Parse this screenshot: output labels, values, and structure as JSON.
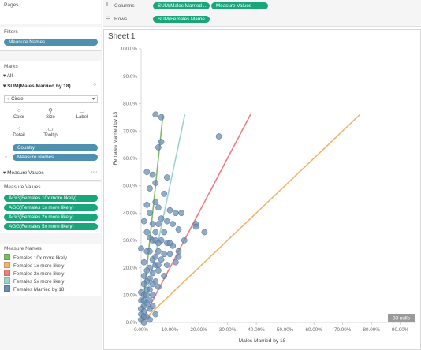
{
  "sidebar": {
    "pages_title": "Pages",
    "filters_title": "Filters",
    "filter_pill": "Measure Names",
    "marks_title": "Marks",
    "marks_all": "All",
    "marks_measure": "SUM(Males Married by 18)",
    "mark_type": "Circle",
    "mark_buttons": [
      {
        "label": "Color",
        "icon": "color-icon"
      },
      {
        "label": "Size",
        "icon": "size-icon"
      },
      {
        "label": "Label",
        "icon": "label-icon"
      },
      {
        "label": "Detail",
        "icon": "detail-icon"
      },
      {
        "label": "Tooltip",
        "icon": "tooltip-icon"
      }
    ],
    "mark_fields": [
      "Country",
      "Measure Names"
    ],
    "measure_values_title": "Measure Values",
    "measure_values_card_title": "Measure Values",
    "measure_values_items": [
      "AGG(Females 10x more likely)",
      "AGG(Females 1x more likely)",
      "AGG(Females 2x more likely)",
      "AGG(Females 5x more likely)"
    ],
    "legend_title": "Measure Names",
    "legend_items": [
      {
        "label": "Females 10x more likely",
        "color": "#7fba6b"
      },
      {
        "label": "Females 1x more likely",
        "color": "#f4b36b"
      },
      {
        "label": "Females 2x more likely",
        "color": "#ec7e7e"
      },
      {
        "label": "Females 5x more likely",
        "color": "#9dd3cd"
      },
      {
        "label": "Females Married by 18",
        "color": "#6b8eb4"
      }
    ]
  },
  "shelves": {
    "columns_label": "Columns",
    "columns_pills": [
      "SUM(Males Married ...",
      "Measure Values"
    ],
    "rows_label": "Rows",
    "rows_pills": [
      "SUM(Females Marrie..."
    ]
  },
  "sheet": {
    "title": "Sheet 1",
    "nulls_badge": "33 nulls"
  },
  "chart_data": {
    "type": "scatter",
    "xlabel": "Males Married by 18",
    "ylabel": "Females Married by 18",
    "xlim": [
      0,
      0.95
    ],
    "ylim": [
      0,
      1.0
    ],
    "x_ticks": [
      "0.00%",
      "10.00%",
      "20.00%",
      "30.00%",
      "40.00%",
      "50.00%",
      "60.00%",
      "70.00%",
      "80.00%",
      "90.00%"
    ],
    "y_ticks": [
      "0.0%",
      "10.0%",
      "20.0%",
      "30.0%",
      "40.0%",
      "50.0%",
      "60.0%",
      "70.0%",
      "80.0%",
      "90.0%",
      "100.0%"
    ],
    "grid": false,
    "lines": [
      {
        "name": "Females 10x more likely",
        "color": "#7fba6b",
        "x": [
          0.0005,
          0.076
        ],
        "y": [
          0.005,
          0.76
        ]
      },
      {
        "name": "Females 5x more likely",
        "color": "#9dd3cd",
        "x": [
          0.001,
          0.152
        ],
        "y": [
          0.005,
          0.76
        ]
      },
      {
        "name": "Females 2x more likely",
        "color": "#ec7e7e",
        "x": [
          0.0025,
          0.38
        ],
        "y": [
          0.005,
          0.76
        ]
      },
      {
        "name": "Females 1x more likely",
        "color": "#f4b36b",
        "x": [
          0.005,
          0.76
        ],
        "y": [
          0.005,
          0.76
        ]
      }
    ],
    "points_color": "#6b8eb4",
    "points": [
      [
        0.05,
        0.76
      ],
      [
        0.07,
        0.75
      ],
      [
        0.27,
        0.68
      ],
      [
        0.07,
        0.66
      ],
      [
        0.06,
        0.64
      ],
      [
        0.02,
        0.55
      ],
      [
        0.04,
        0.54
      ],
      [
        0.09,
        0.53
      ],
      [
        0.05,
        0.51
      ],
      [
        0.03,
        0.49
      ],
      [
        0.08,
        0.47
      ],
      [
        0.05,
        0.44
      ],
      [
        0.02,
        0.43
      ],
      [
        0.06,
        0.42
      ],
      [
        0.1,
        0.41
      ],
      [
        0.12,
        0.4
      ],
      [
        0.14,
        0.4
      ],
      [
        0.03,
        0.4
      ],
      [
        0.07,
        0.38
      ],
      [
        0.09,
        0.37
      ],
      [
        0.01,
        0.37
      ],
      [
        0.04,
        0.36
      ],
      [
        0.06,
        0.36
      ],
      [
        0.11,
        0.36
      ],
      [
        0.19,
        0.36
      ],
      [
        0.19,
        0.35
      ],
      [
        0.13,
        0.34
      ],
      [
        0.22,
        0.33
      ],
      [
        0.02,
        0.33
      ],
      [
        0.05,
        0.33
      ],
      [
        0.08,
        0.33
      ],
      [
        0.03,
        0.31
      ],
      [
        0.04,
        0.3
      ],
      [
        0.05,
        0.3
      ],
      [
        0.07,
        0.3
      ],
      [
        0.06,
        0.29
      ],
      [
        0.09,
        0.29
      ],
      [
        0.11,
        0.28
      ],
      [
        0.0,
        0.27
      ],
      [
        0.02,
        0.26
      ],
      [
        0.03,
        0.26
      ],
      [
        0.06,
        0.26
      ],
      [
        0.08,
        0.25
      ],
      [
        0.1,
        0.25
      ],
      [
        0.13,
        0.24
      ],
      [
        0.04,
        0.23
      ],
      [
        0.07,
        0.23
      ],
      [
        0.01,
        0.22
      ],
      [
        0.05,
        0.21
      ],
      [
        0.09,
        0.21
      ],
      [
        0.03,
        0.2
      ],
      [
        0.02,
        0.19
      ],
      [
        0.06,
        0.19
      ],
      [
        0.04,
        0.18
      ],
      [
        0.08,
        0.17
      ],
      [
        0.01,
        0.17
      ],
      [
        0.03,
        0.16
      ],
      [
        0.05,
        0.15
      ],
      [
        0.02,
        0.15
      ],
      [
        0.04,
        0.14
      ],
      [
        0.01,
        0.14
      ],
      [
        0.06,
        0.13
      ],
      [
        0.02,
        0.12
      ],
      [
        0.03,
        0.12
      ],
      [
        0.0,
        0.11
      ],
      [
        0.01,
        0.1
      ],
      [
        0.02,
        0.1
      ],
      [
        0.04,
        0.1
      ],
      [
        0.0,
        0.08
      ],
      [
        0.01,
        0.08
      ],
      [
        0.02,
        0.07
      ],
      [
        0.01,
        0.06
      ],
      [
        0.0,
        0.05
      ],
      [
        0.03,
        0.05
      ],
      [
        0.01,
        0.04
      ],
      [
        0.0,
        0.03
      ],
      [
        0.02,
        0.02
      ],
      [
        0.01,
        0.02
      ],
      [
        0.0,
        0.01
      ],
      [
        0.03,
        0.01
      ],
      [
        0.01,
        0.0
      ],
      [
        0.05,
        0.03
      ],
      [
        0.03,
        0.08
      ],
      [
        0.04,
        0.06
      ],
      [
        0.06,
        0.21
      ],
      [
        0.05,
        0.24
      ],
      [
        0.1,
        0.29
      ],
      [
        0.12,
        0.22
      ],
      [
        0.15,
        0.3
      ],
      [
        0.13,
        0.26
      ]
    ]
  }
}
